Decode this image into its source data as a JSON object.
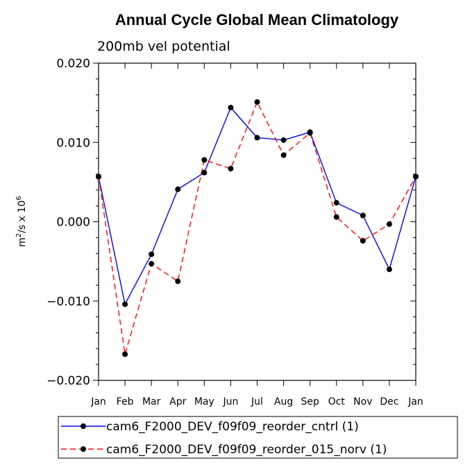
{
  "chart_data": {
    "type": "line",
    "title": "Annual Cycle Global Mean Climatology",
    "subtitle": "200mb vel potential",
    "ylabel_text": "m",
    "ylabel_sup1": "2",
    "ylabel_mid": "/s x 10",
    "ylabel_sup2": "6",
    "categories": [
      "Jan",
      "Feb",
      "Mar",
      "Apr",
      "May",
      "Jun",
      "Jul",
      "Aug",
      "Sep",
      "Oct",
      "Nov",
      "Dec",
      "Jan"
    ],
    "ylim": [
      -0.02,
      0.02
    ],
    "ytick_values": [
      -0.02,
      -0.01,
      0.0,
      0.01,
      0.02
    ],
    "ytick_labels": [
      "−0.020",
      "−0.010",
      "0.000",
      "0.010",
      "0.020"
    ],
    "series": [
      {
        "name": "cam6_F2000_DEV_f09f09_reorder_cntrl (1)",
        "color": "#0000ff",
        "dash": "solid",
        "values": [
          0.0057,
          -0.0104,
          -0.0041,
          0.0041,
          0.0062,
          0.0144,
          0.0106,
          0.0103,
          0.0113,
          0.0024,
          0.0008,
          -0.006,
          0.0057
        ]
      },
      {
        "name": "cam6_F2000_DEV_f09f09_reorder_015_norv (1)",
        "color": "#ff0000",
        "dash": "dashed",
        "values": [
          0.0057,
          -0.0167,
          -0.0053,
          -0.0075,
          0.0078,
          0.0067,
          0.0151,
          0.0084,
          0.0112,
          0.0006,
          -0.0024,
          -0.0003,
          0.0057
        ]
      }
    ],
    "legend_position": "bottom"
  }
}
